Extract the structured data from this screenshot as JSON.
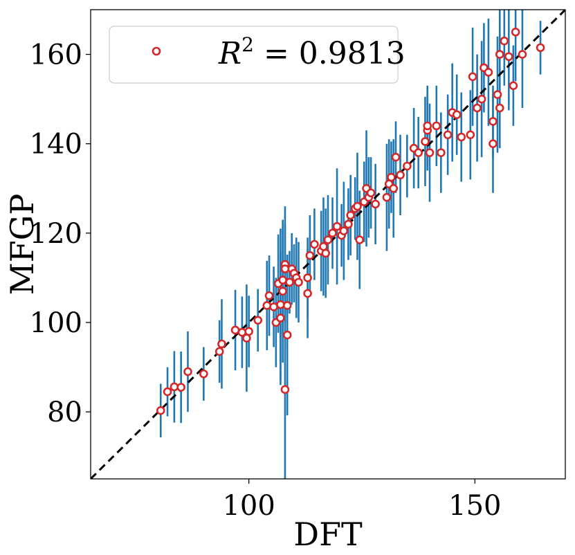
{
  "chart_data": {
    "type": "scatter",
    "title": "",
    "xlabel": "DFT",
    "ylabel": "MFGP",
    "xlim": [
      65,
      170
    ],
    "ylim": [
      65,
      170
    ],
    "xticks": [
      100,
      150
    ],
    "yticks": [
      80,
      100,
      120,
      140,
      160
    ],
    "grid": false,
    "legend": {
      "placement": "top-left",
      "label": "R^2 = 0.9813",
      "label_base": "R",
      "label_sup": "2",
      "label_rest": " = 0.9813"
    },
    "colors": {
      "marker_edge": "#d62728",
      "marker_face": "#ffffff",
      "errorbar": "#1f77b4",
      "identity_line": "#000000"
    },
    "identity_line": true,
    "series": [
      {
        "name": "R^2 = 0.9813",
        "x": [
          80.5,
          82.0,
          83.5,
          85.0,
          86.5,
          90.0,
          93.5,
          94.0,
          97.0,
          98.5,
          99.5,
          100.0,
          102.0,
          104.0,
          104.5,
          105.5,
          106.0,
          106.5,
          107.0,
          107.0,
          107.5,
          107.5,
          108.0,
          108.0,
          108.5,
          108.5,
          109.0,
          109.5,
          110.0,
          110.5,
          111.0,
          113.0,
          113.5,
          114.5,
          116.0,
          116.5,
          117.5,
          118.5,
          119.5,
          120.5,
          121.0,
          122.0,
          122.5,
          123.5,
          124.0,
          124.5,
          125.5,
          126.0,
          126.5,
          127.0,
          128.0,
          130.5,
          131.0,
          131.5,
          132.0,
          132.5,
          133.5,
          135.0,
          136.5,
          137.5,
          139.0,
          139.5,
          140.0,
          141.5,
          142.5,
          144.0,
          145.0,
          146.0,
          147.0,
          149.0,
          149.5,
          150.5,
          152.0,
          153.0,
          154.0,
          155.5,
          156.5,
          157.5,
          158.5,
          159.0,
          160.5,
          164.5,
          108.0,
          113.0,
          117.0,
          139.5,
          151.5,
          155.0,
          154.0,
          155.5
        ],
        "y": [
          80.3,
          84.5,
          85.6,
          85.5,
          89.0,
          88.5,
          93.5,
          95.2,
          98.3,
          97.8,
          96.5,
          98.0,
          100.5,
          103.8,
          106.0,
          103.5,
          100.0,
          108.7,
          104.0,
          101.0,
          107.0,
          109.5,
          85.0,
          113.0,
          97.2,
          103.8,
          109.0,
          112.0,
          111.0,
          110.0,
          109.0,
          106.5,
          115.0,
          117.5,
          116.0,
          117.0,
          118.5,
          120.0,
          121.5,
          119.5,
          120.5,
          122.0,
          124.0,
          125.5,
          126.0,
          118.5,
          127.0,
          130.0,
          128.0,
          129.0,
          126.5,
          128.0,
          131.0,
          132.5,
          130.0,
          137.0,
          133.0,
          135.0,
          139.0,
          138.0,
          140.5,
          143.0,
          138.0,
          144.0,
          138.0,
          142.0,
          147.0,
          146.5,
          141.5,
          142.0,
          155.0,
          148.0,
          157.0,
          156.0,
          140.0,
          160.0,
          163.0,
          159.5,
          153.0,
          165.0,
          160.0,
          161.5,
          112.0,
          110.0,
          115.5,
          144.0,
          150.0,
          151.0,
          145.0,
          148.0
        ],
        "err": [
          6.0,
          5.5,
          8.0,
          8.0,
          9.0,
          6.0,
          7.0,
          10.0,
          9.0,
          8.0,
          12.0,
          8.0,
          7.0,
          10.0,
          9.0,
          9.0,
          10.0,
          11.0,
          17.0,
          15.0,
          16.0,
          12.0,
          21.0,
          13.0,
          18.0,
          10.0,
          7.0,
          8.0,
          6.5,
          9.0,
          9.0,
          10.0,
          9.0,
          8.0,
          9.0,
          11.0,
          10.0,
          8.0,
          13.0,
          7.0,
          11.0,
          8.0,
          9.0,
          7.0,
          12.0,
          11.0,
          9.0,
          13.0,
          9.0,
          8.0,
          9.0,
          12.0,
          10.0,
          8.0,
          11.0,
          8.0,
          9.0,
          7.0,
          9.0,
          8.0,
          10.0,
          9.0,
          11.0,
          9.0,
          9.0,
          9.0,
          11.0,
          9.0,
          10.0,
          10.0,
          11.0,
          12.0,
          10.0,
          12.0,
          11.0,
          10.0,
          10.0,
          12.0,
          9.0,
          11.0,
          12.0,
          6.0,
          10.0,
          9.0,
          10.0,
          9.0,
          13.0,
          13.0,
          8.0,
          9.0
        ]
      }
    ]
  }
}
